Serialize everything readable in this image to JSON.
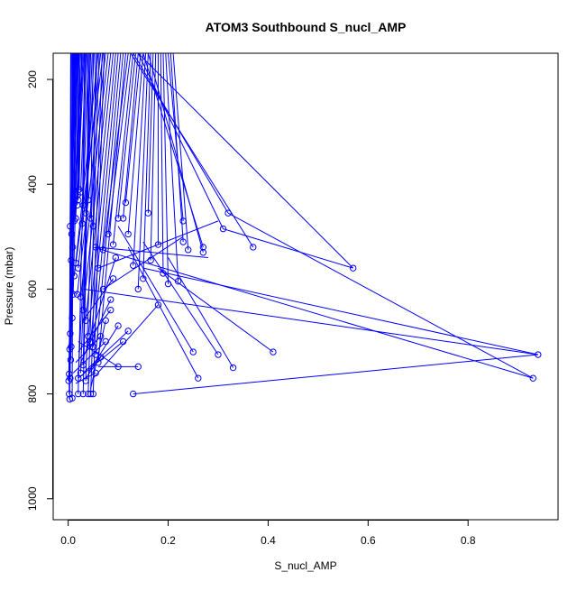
{
  "chart_data": {
    "type": "line",
    "title": "ATOM3 Southbound S_nucl_AMP",
    "xlabel": "S_nucl_AMP",
    "ylabel": "Pressure (mbar)",
    "xlim": [
      -0.03,
      0.98
    ],
    "ylim": [
      1040,
      150
    ],
    "y_inverted": true,
    "xticks": [
      0.0,
      0.2,
      0.4,
      0.6,
      0.8
    ],
    "xtick_labels": [
      "0.0",
      "0.2",
      "0.4",
      "0.6",
      "0.8"
    ],
    "yticks": [
      200,
      400,
      600,
      800,
      1000
    ],
    "ytick_labels": [
      "200",
      "400",
      "600",
      "800",
      "1000"
    ],
    "grid": false,
    "series_color": "#0000ff",
    "marker": "open-circle",
    "points": [
      [
        0.003,
        810
      ],
      [
        0.008,
        808
      ],
      [
        0.002,
        800
      ],
      [
        0.001,
        775
      ],
      [
        0.004,
        770
      ],
      [
        0.002,
        762
      ],
      [
        0.005,
        735
      ],
      [
        0.003,
        715
      ],
      [
        0.006,
        710
      ],
      [
        0.004,
        685
      ],
      [
        0.008,
        655
      ],
      [
        0.01,
        610
      ],
      [
        0.006,
        545
      ],
      [
        0.009,
        520
      ],
      [
        0.007,
        495
      ],
      [
        0.004,
        480
      ],
      [
        0.012,
        470
      ],
      [
        0.015,
        465
      ],
      [
        0.01,
        445
      ],
      [
        0.018,
        440
      ],
      [
        0.02,
        430
      ],
      [
        0.022,
        410
      ],
      [
        0.019,
        420
      ],
      [
        0.025,
        415
      ],
      [
        0.03,
        440
      ],
      [
        0.035,
        455
      ],
      [
        0.04,
        430
      ],
      [
        0.045,
        465
      ],
      [
        0.05,
        480
      ],
      [
        0.028,
        475
      ],
      [
        0.015,
        550
      ],
      [
        0.02,
        560
      ],
      [
        0.012,
        575
      ],
      [
        0.018,
        610
      ],
      [
        0.025,
        615
      ],
      [
        0.03,
        640
      ],
      [
        0.035,
        660
      ],
      [
        0.04,
        690
      ],
      [
        0.045,
        700
      ],
      [
        0.05,
        710
      ],
      [
        0.055,
        725
      ],
      [
        0.06,
        740
      ],
      [
        0.03,
        745
      ],
      [
        0.025,
        760
      ],
      [
        0.02,
        770
      ],
      [
        0.035,
        775
      ],
      [
        0.04,
        800
      ],
      [
        0.045,
        800
      ],
      [
        0.05,
        800
      ],
      [
        0.02,
        800
      ],
      [
        0.03,
        800
      ],
      [
        0.07,
        525
      ],
      [
        0.08,
        495
      ],
      [
        0.09,
        515
      ],
      [
        0.1,
        465
      ],
      [
        0.11,
        465
      ],
      [
        0.115,
        435
      ],
      [
        0.12,
        495
      ],
      [
        0.13,
        555
      ],
      [
        0.14,
        600
      ],
      [
        0.15,
        580
      ],
      [
        0.16,
        455
      ],
      [
        0.165,
        545
      ],
      [
        0.18,
        515
      ],
      [
        0.19,
        570
      ],
      [
        0.2,
        590
      ],
      [
        0.22,
        585
      ],
      [
        0.23,
        470
      ],
      [
        0.23,
        510
      ],
      [
        0.24,
        525
      ],
      [
        0.25,
        720
      ],
      [
        0.26,
        770
      ],
      [
        0.27,
        520
      ],
      [
        0.27,
        530
      ],
      [
        0.3,
        725
      ],
      [
        0.31,
        485
      ],
      [
        0.32,
        455
      ],
      [
        0.33,
        750
      ],
      [
        0.37,
        520
      ],
      [
        0.41,
        720
      ],
      [
        0.57,
        560
      ],
      [
        0.93,
        770
      ],
      [
        0.94,
        725
      ],
      [
        0.13,
        800
      ],
      [
        0.14,
        748
      ],
      [
        0.1,
        748
      ],
      [
        0.09,
        580
      ],
      [
        0.085,
        640
      ],
      [
        0.075,
        700
      ],
      [
        0.065,
        690
      ],
      [
        0.07,
        600
      ],
      [
        0.06,
        560
      ],
      [
        0.055,
        520
      ],
      [
        0.1,
        670
      ],
      [
        0.11,
        700
      ],
      [
        0.18,
        630
      ],
      [
        0.12,
        680
      ],
      [
        0.095,
        540
      ],
      [
        0.085,
        620
      ],
      [
        0.075,
        660
      ],
      [
        0.065,
        730
      ],
      [
        0.055,
        760
      ]
    ],
    "segments": [
      [
        0.003,
        810,
        0.005,
        150
      ],
      [
        0.008,
        808,
        0.01,
        150
      ],
      [
        0.002,
        800,
        0.006,
        150
      ],
      [
        0.001,
        775,
        0.012,
        150
      ],
      [
        0.004,
        770,
        0.008,
        150
      ],
      [
        0.002,
        762,
        0.014,
        150
      ],
      [
        0.005,
        735,
        0.016,
        150
      ],
      [
        0.003,
        715,
        0.011,
        150
      ],
      [
        0.006,
        710,
        0.018,
        150
      ],
      [
        0.004,
        685,
        0.02,
        150
      ],
      [
        0.008,
        655,
        0.015,
        150
      ],
      [
        0.01,
        610,
        0.022,
        150
      ],
      [
        0.006,
        545,
        0.009,
        150
      ],
      [
        0.009,
        520,
        0.025,
        150
      ],
      [
        0.007,
        495,
        0.013,
        150
      ],
      [
        0.004,
        480,
        0.017,
        150
      ],
      [
        0.012,
        470,
        0.028,
        150
      ],
      [
        0.015,
        465,
        0.03,
        150
      ],
      [
        0.01,
        445,
        0.019,
        150
      ],
      [
        0.018,
        440,
        0.032,
        150
      ],
      [
        0.02,
        430,
        0.024,
        150
      ],
      [
        0.022,
        410,
        0.027,
        150
      ],
      [
        0.019,
        420,
        0.021,
        150
      ],
      [
        0.025,
        415,
        0.035,
        150
      ],
      [
        0.03,
        440,
        0.04,
        150
      ],
      [
        0.035,
        455,
        0.045,
        150
      ],
      [
        0.04,
        430,
        0.038,
        150
      ],
      [
        0.045,
        465,
        0.05,
        150
      ],
      [
        0.05,
        480,
        0.055,
        150
      ],
      [
        0.028,
        475,
        0.033,
        150
      ],
      [
        0.015,
        550,
        0.06,
        150
      ],
      [
        0.02,
        560,
        0.065,
        150
      ],
      [
        0.012,
        575,
        0.07,
        150
      ],
      [
        0.018,
        610,
        0.075,
        150
      ],
      [
        0.025,
        615,
        0.08,
        150
      ],
      [
        0.03,
        640,
        0.085,
        150
      ],
      [
        0.035,
        660,
        0.09,
        150
      ],
      [
        0.04,
        690,
        0.095,
        150
      ],
      [
        0.045,
        700,
        0.1,
        150
      ],
      [
        0.05,
        710,
        0.105,
        150
      ],
      [
        0.055,
        725,
        0.11,
        150
      ],
      [
        0.06,
        740,
        0.115,
        150
      ],
      [
        0.03,
        745,
        0.042,
        150
      ],
      [
        0.025,
        760,
        0.048,
        150
      ],
      [
        0.02,
        770,
        0.052,
        150
      ],
      [
        0.035,
        775,
        0.058,
        150
      ],
      [
        0.04,
        800,
        0.062,
        150
      ],
      [
        0.045,
        800,
        0.068,
        150
      ],
      [
        0.05,
        800,
        0.072,
        150
      ],
      [
        0.02,
        800,
        0.036,
        150
      ],
      [
        0.03,
        800,
        0.044,
        150
      ],
      [
        0.07,
        525,
        0.12,
        150
      ],
      [
        0.08,
        495,
        0.125,
        150
      ],
      [
        0.09,
        515,
        0.13,
        150
      ],
      [
        0.1,
        465,
        0.135,
        150
      ],
      [
        0.11,
        465,
        0.14,
        150
      ],
      [
        0.115,
        435,
        0.145,
        150
      ],
      [
        0.12,
        495,
        0.15,
        150
      ],
      [
        0.13,
        555,
        0.155,
        150
      ],
      [
        0.14,
        600,
        0.16,
        150
      ],
      [
        0.15,
        580,
        0.165,
        150
      ],
      [
        0.16,
        455,
        0.17,
        150
      ],
      [
        0.165,
        545,
        0.175,
        150
      ],
      [
        0.18,
        515,
        0.18,
        150
      ],
      [
        0.19,
        570,
        0.185,
        150
      ],
      [
        0.2,
        590,
        0.19,
        150
      ],
      [
        0.22,
        585,
        0.195,
        150
      ],
      [
        0.23,
        470,
        0.2,
        150
      ],
      [
        0.23,
        510,
        0.205,
        150
      ],
      [
        0.24,
        525,
        0.21,
        150
      ],
      [
        0.25,
        720,
        0.1,
        480
      ],
      [
        0.26,
        770,
        0.12,
        520
      ],
      [
        0.27,
        520,
        0.15,
        150
      ],
      [
        0.27,
        530,
        0.16,
        150
      ],
      [
        0.3,
        725,
        0.15,
        510
      ],
      [
        0.31,
        485,
        0.14,
        150
      ],
      [
        0.32,
        455,
        0.13,
        150
      ],
      [
        0.33,
        750,
        0.2,
        540
      ],
      [
        0.37,
        520,
        0.125,
        150
      ],
      [
        0.41,
        720,
        0.18,
        560
      ],
      [
        0.57,
        560,
        0.14,
        150
      ],
      [
        0.93,
        770,
        0.05,
        520
      ],
      [
        0.94,
        725,
        0.03,
        600
      ],
      [
        0.13,
        800,
        0.94,
        725
      ],
      [
        0.14,
        748,
        0.06,
        748
      ],
      [
        0.1,
        748,
        0.02,
        700
      ],
      [
        0.09,
        580,
        0.03,
        660
      ],
      [
        0.085,
        640,
        0.02,
        720
      ],
      [
        0.075,
        700,
        0.01,
        760
      ],
      [
        0.065,
        690,
        0.015,
        740
      ],
      [
        0.07,
        600,
        0.23,
        500
      ],
      [
        0.06,
        560,
        0.3,
        470
      ],
      [
        0.055,
        520,
        0.28,
        540
      ],
      [
        0.1,
        670,
        0.04,
        760
      ],
      [
        0.11,
        700,
        0.02,
        770
      ],
      [
        0.18,
        630,
        0.05,
        770
      ],
      [
        0.12,
        680,
        0.03,
        760
      ],
      [
        0.095,
        540,
        0.035,
        720
      ],
      [
        0.085,
        620,
        0.025,
        740
      ],
      [
        0.075,
        660,
        0.045,
        790
      ],
      [
        0.065,
        730,
        0.035,
        770
      ],
      [
        0.055,
        760,
        0.015,
        780
      ],
      [
        0.93,
        770,
        0.32,
        455
      ],
      [
        0.57,
        560,
        0.31,
        485
      ],
      [
        0.94,
        725,
        0.15,
        560
      ]
    ]
  }
}
